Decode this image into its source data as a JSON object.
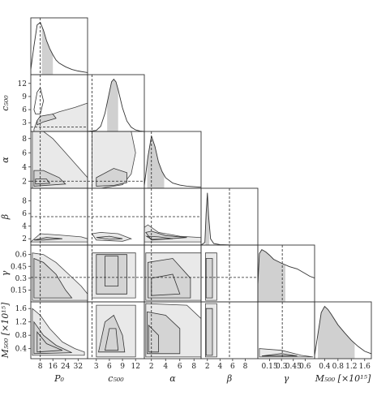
{
  "chart_data": {
    "type": "corner",
    "parameters": [
      {
        "key": "P0",
        "label": "P₀",
        "range": [
          2,
          38
        ],
        "ticks": [
          8,
          16,
          24,
          32
        ],
        "truth": 8
      },
      {
        "key": "c500",
        "label": "c₅₀₀",
        "range": [
          1,
          14
        ],
        "ticks": [
          3,
          6,
          9,
          12
        ],
        "truth": 2
      },
      {
        "key": "alpha",
        "label": "α",
        "range": [
          1,
          9
        ],
        "ticks": [
          2,
          4,
          6,
          8
        ],
        "truth": 2
      },
      {
        "key": "beta",
        "label": "β",
        "range": [
          1,
          10
        ],
        "ticks": [
          2,
          4,
          6,
          8
        ],
        "truth": 5.5
      },
      {
        "key": "gamma",
        "label": "γ",
        "range": [
          0.0,
          0.72
        ],
        "ticks": [
          0.15,
          0.3,
          0.45,
          0.6
        ],
        "truth": 0.31
      },
      {
        "key": "M500",
        "label": "M₅₀₀ [×10¹⁵]",
        "range": [
          0.1,
          1.8
        ],
        "ticks": [
          0.4,
          0.8,
          1.2,
          1.6
        ],
        "truth": null
      }
    ],
    "marginals": {
      "P0": {
        "x": [
          2,
          4,
          6,
          8,
          10,
          12,
          14,
          16,
          18,
          20,
          24,
          28,
          32,
          36,
          38
        ],
        "y": [
          0.1,
          0.55,
          0.95,
          1.0,
          0.85,
          0.65,
          0.5,
          0.38,
          0.28,
          0.22,
          0.15,
          0.1,
          0.07,
          0.05,
          0.04
        ],
        "shade": [
          9,
          16
        ]
      },
      "c500": {
        "x": [
          1,
          3,
          4,
          5,
          6,
          6.5,
          7,
          7.5,
          8,
          9,
          10,
          11,
          12,
          13,
          14
        ],
        "y": [
          0.0,
          0.02,
          0.1,
          0.35,
          0.75,
          0.95,
          1.0,
          0.95,
          0.8,
          0.45,
          0.2,
          0.08,
          0.03,
          0.01,
          0.0
        ],
        "shade": [
          5.5,
          8.0
        ]
      },
      "alpha": {
        "x": [
          1,
          1.5,
          2,
          2.5,
          3,
          3.5,
          4,
          5,
          6,
          7,
          8,
          9
        ],
        "y": [
          0.05,
          0.6,
          1.0,
          0.8,
          0.5,
          0.32,
          0.2,
          0.1,
          0.06,
          0.04,
          0.03,
          0.02
        ],
        "shade": [
          1.4,
          3.8
        ]
      },
      "beta": {
        "x": [
          1,
          1.6,
          1.8,
          2.0,
          2.2,
          2.5,
          3,
          4,
          6,
          10
        ],
        "y": [
          0.0,
          0.05,
          0.6,
          1.0,
          0.55,
          0.12,
          0.03,
          0.01,
          0.0,
          0.0
        ],
        "shade": [
          1.7,
          2.3
        ]
      },
      "gamma": {
        "x": [
          0.0,
          0.02,
          0.05,
          0.1,
          0.15,
          0.2,
          0.3,
          0.4,
          0.5,
          0.6,
          0.66,
          0.72
        ],
        "y": [
          0.3,
          0.85,
          0.92,
          0.88,
          0.82,
          0.75,
          0.68,
          0.62,
          0.58,
          0.5,
          0.45,
          0.42
        ],
        "shade": [
          0.0,
          0.35
        ]
      },
      "M500": {
        "x": [
          0.1,
          0.2,
          0.3,
          0.4,
          0.5,
          0.6,
          0.8,
          1.0,
          1.2,
          1.4,
          1.6,
          1.8
        ],
        "y": [
          0.05,
          0.4,
          0.75,
          0.85,
          0.8,
          0.72,
          0.55,
          0.42,
          0.3,
          0.2,
          0.12,
          0.08
        ],
        "shade": [
          0.2,
          1.3
        ]
      }
    },
    "joints": [
      {
        "row": 1,
        "col": 0,
        "outer": [
          [
            4,
            1.5
          ],
          [
            6,
            3.5
          ],
          [
            12,
            4.5
          ],
          [
            20,
            5.5
          ],
          [
            30,
            6.5
          ],
          [
            38,
            7.5
          ],
          [
            38,
            1
          ],
          [
            4,
            1
          ]
        ],
        "inner": [
          [
            6,
            2.5
          ],
          [
            10,
            3.2
          ],
          [
            18,
            4
          ],
          [
            16,
            5
          ],
          [
            8,
            4.5
          ],
          [
            6,
            3.5
          ]
        ],
        "extra": [
          [
            4,
            6
          ],
          [
            6,
            10
          ],
          [
            8,
            11
          ],
          [
            10,
            8
          ],
          [
            8,
            5
          ],
          [
            5,
            5
          ]
        ]
      },
      {
        "row": 2,
        "col": 0,
        "outer": [
          [
            3,
            1
          ],
          [
            3,
            9
          ],
          [
            10,
            9
          ],
          [
            16,
            8
          ],
          [
            22,
            6.5
          ],
          [
            28,
            5
          ],
          [
            34,
            3.5
          ],
          [
            38,
            2.5
          ],
          [
            38,
            1
          ]
        ],
        "inner": [
          [
            4,
            1.3
          ],
          [
            4,
            3.5
          ],
          [
            10,
            3.5
          ],
          [
            20,
            2.5
          ],
          [
            24,
            1.6
          ]
        ],
        "extra": [
          [
            5,
            1.6
          ],
          [
            5,
            2.3
          ],
          [
            12,
            2.3
          ],
          [
            14,
            1.7
          ]
        ]
      },
      {
        "row": 3,
        "col": 0,
        "outer": [
          [
            2,
            1.5
          ],
          [
            8,
            2.8
          ],
          [
            20,
            2.6
          ],
          [
            34,
            2.3
          ],
          [
            38,
            2.0
          ],
          [
            38,
            1.5
          ]
        ],
        "inner": [
          [
            4,
            1.8
          ],
          [
            12,
            2.2
          ],
          [
            22,
            2.0
          ],
          [
            10,
            1.8
          ]
        ],
        "extra": []
      },
      {
        "row": 4,
        "col": 0,
        "outer": [
          [
            3,
            0.02
          ],
          [
            3,
            0.62
          ],
          [
            10,
            0.6
          ],
          [
            18,
            0.5
          ],
          [
            26,
            0.35
          ],
          [
            34,
            0.2
          ],
          [
            38,
            0.1
          ],
          [
            38,
            0.02
          ]
        ],
        "inner": [
          [
            4,
            0.05
          ],
          [
            4,
            0.55
          ],
          [
            10,
            0.5
          ],
          [
            18,
            0.35
          ],
          [
            24,
            0.15
          ],
          [
            28,
            0.05
          ]
        ],
        "extra": []
      },
      {
        "row": 5,
        "col": 0,
        "outer": [
          [
            3,
            0.2
          ],
          [
            3,
            1.6
          ],
          [
            8,
            1.4
          ],
          [
            14,
            1.0
          ],
          [
            22,
            0.6
          ],
          [
            30,
            0.4
          ],
          [
            36,
            0.3
          ],
          [
            36,
            0.2
          ]
        ],
        "inner": [
          [
            4,
            0.25
          ],
          [
            4,
            1.2
          ],
          [
            10,
            0.8
          ],
          [
            18,
            0.5
          ],
          [
            28,
            0.28
          ]
        ],
        "extra": [
          [
            6,
            0.3
          ],
          [
            6,
            0.9
          ],
          [
            12,
            0.55
          ],
          [
            22,
            0.35
          ]
        ]
      },
      {
        "row": 2,
        "col": 1,
        "outer": [
          [
            2,
            1
          ],
          [
            2,
            9
          ],
          [
            11,
            9
          ],
          [
            12,
            6
          ],
          [
            11,
            3
          ],
          [
            9,
            1.5
          ],
          [
            4,
            1
          ]
        ],
        "inner": [
          [
            3,
            1.3
          ],
          [
            3,
            2.5
          ],
          [
            7,
            3.8
          ],
          [
            10,
            3.2
          ],
          [
            10,
            1.8
          ],
          [
            7,
            1.4
          ]
        ],
        "extra": []
      },
      {
        "row": 3,
        "col": 1,
        "outer": [
          [
            2,
            2.8
          ],
          [
            4,
            3.0
          ],
          [
            8,
            2.8
          ],
          [
            11,
            2.0
          ],
          [
            9,
            1.6
          ],
          [
            3,
            1.8
          ]
        ],
        "inner": [
          [
            3,
            2.2
          ],
          [
            6,
            2.4
          ],
          [
            9,
            2.0
          ],
          [
            6,
            1.9
          ]
        ],
        "extra": []
      },
      {
        "row": 4,
        "col": 1,
        "outer": [
          [
            2,
            0.05
          ],
          [
            2,
            0.62
          ],
          [
            12,
            0.62
          ],
          [
            12,
            0.05
          ]
        ],
        "inner": [
          [
            3,
            0.1
          ],
          [
            3,
            0.6
          ],
          [
            10,
            0.6
          ],
          [
            10,
            0.1
          ]
        ],
        "extra": [
          [
            5,
            0.2
          ],
          [
            5,
            0.58
          ],
          [
            8,
            0.58
          ],
          [
            8,
            0.2
          ]
        ]
      },
      {
        "row": 5,
        "col": 1,
        "outer": [
          [
            3,
            0.15
          ],
          [
            3,
            1.7
          ],
          [
            12,
            1.7
          ],
          [
            12,
            0.15
          ]
        ],
        "inner": [
          [
            3.5,
            0.3
          ],
          [
            5,
            1.2
          ],
          [
            7,
            1.4
          ],
          [
            9,
            0.8
          ],
          [
            9.5,
            0.3
          ]
        ],
        "extra": [
          [
            5,
            0.35
          ],
          [
            6,
            1.0
          ],
          [
            7.5,
            1.0
          ],
          [
            8,
            0.35
          ]
        ]
      },
      {
        "row": 3,
        "col": 2,
        "outer": [
          [
            1,
            3.8
          ],
          [
            1.5,
            4.2
          ],
          [
            3,
            3.0
          ],
          [
            6,
            2.4
          ],
          [
            9,
            2.2
          ],
          [
            9,
            1.5
          ],
          [
            1,
            1.5
          ]
        ],
        "inner": [
          [
            1.2,
            3.0
          ],
          [
            2,
            3.2
          ],
          [
            4,
            2.5
          ],
          [
            7,
            2.2
          ],
          [
            2,
            1.8
          ]
        ],
        "extra": [
          [
            1.3,
            2.4
          ],
          [
            3,
            2.3
          ],
          [
            5,
            2.0
          ],
          [
            2,
            1.9
          ]
        ]
      },
      {
        "row": 4,
        "col": 2,
        "outer": [
          [
            1.2,
            0.02
          ],
          [
            1.2,
            0.62
          ],
          [
            9,
            0.62
          ],
          [
            9,
            0.02
          ]
        ],
        "inner": [
          [
            1.5,
            0.05
          ],
          [
            1.5,
            0.5
          ],
          [
            5,
            0.55
          ],
          [
            7.5,
            0.3
          ],
          [
            7.5,
            0.05
          ]
        ],
        "extra": [
          [
            2,
            0.08
          ],
          [
            2,
            0.3
          ],
          [
            5,
            0.35
          ],
          [
            6,
            0.1
          ]
        ]
      },
      {
        "row": 5,
        "col": 2,
        "outer": [
          [
            1.2,
            0.15
          ],
          [
            1.2,
            1.75
          ],
          [
            7,
            1.7
          ],
          [
            9,
            1.3
          ],
          [
            9,
            0.15
          ]
        ],
        "inner": [
          [
            1.4,
            0.25
          ],
          [
            1.4,
            1.5
          ],
          [
            4,
            1.4
          ],
          [
            6,
            1.0
          ],
          [
            6,
            0.25
          ]
        ],
        "extra": [
          [
            1.6,
            0.3
          ],
          [
            1.6,
            1.1
          ],
          [
            3,
            0.8
          ],
          [
            3,
            0.3
          ]
        ]
      },
      {
        "row": 4,
        "col": 3,
        "outer": [
          [
            1.7,
            0.02
          ],
          [
            1.7,
            0.62
          ],
          [
            3.5,
            0.62
          ],
          [
            3.5,
            0.02
          ]
        ],
        "inner": [
          [
            1.8,
            0.05
          ],
          [
            1.8,
            0.55
          ],
          [
            2.8,
            0.55
          ],
          [
            2.8,
            0.05
          ]
        ],
        "extra": []
      },
      {
        "row": 5,
        "col": 3,
        "outer": [
          [
            1.7,
            0.15
          ],
          [
            1.7,
            1.75
          ],
          [
            3.5,
            1.75
          ],
          [
            3.5,
            0.15
          ]
        ],
        "inner": [
          [
            1.8,
            0.2
          ],
          [
            1.8,
            1.6
          ],
          [
            2.8,
            1.6
          ],
          [
            2.8,
            0.2
          ]
        ],
        "extra": []
      },
      {
        "row": 5,
        "col": 4,
        "outer": [
          [
            0.02,
            0.15
          ],
          [
            0.02,
            0.4
          ],
          [
            0.3,
            0.35
          ],
          [
            0.55,
            0.2
          ],
          [
            0.7,
            0.15
          ]
        ],
        "inner": [
          [
            0.05,
            0.18
          ],
          [
            0.3,
            0.25
          ],
          [
            0.5,
            0.18
          ]
        ],
        "extra": []
      }
    ]
  }
}
